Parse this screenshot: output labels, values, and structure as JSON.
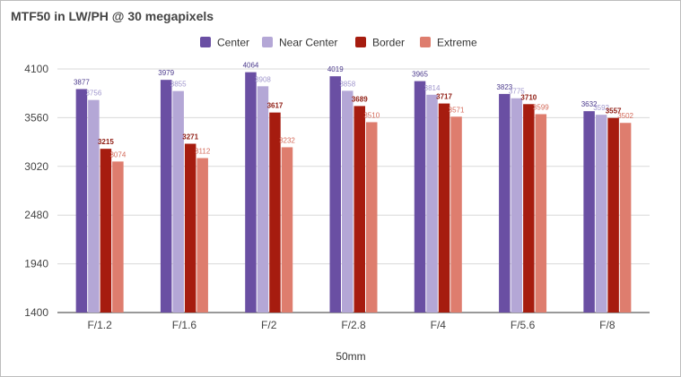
{
  "chart_data": {
    "type": "bar",
    "title": "MTF50 in LW/PH @ 30 megapixels",
    "xlabel": "50mm",
    "ylabel": "",
    "ylim": [
      1400,
      4100
    ],
    "yticks": [
      1400,
      1940,
      2480,
      3020,
      3560,
      4100
    ],
    "grid": true,
    "legend_position": "top",
    "categories": [
      "F/1.2",
      "F/1.6",
      "F/2",
      "F/2.8",
      "F/4",
      "F/5.6",
      "F/8"
    ],
    "series": [
      {
        "name": "Center",
        "color": "#6a4fa3",
        "label_color": "#4b3a8c",
        "bold": false,
        "values": [
          3877,
          3979,
          4064,
          4019,
          3965,
          3823,
          3632
        ]
      },
      {
        "name": "Near Center",
        "color": "#b4a7d6",
        "label_color": "#9f95cc",
        "bold": false,
        "values": [
          3756,
          3855,
          3908,
          3858,
          3814,
          3775,
          3592
        ]
      },
      {
        "name": "Border",
        "color": "#a61c0f",
        "label_color": "#8e1a10",
        "bold": true,
        "values": [
          3215,
          3271,
          3617,
          3689,
          3717,
          3710,
          3557
        ]
      },
      {
        "name": "Extreme",
        "color": "#de7d6e",
        "label_color": "#d46a5a",
        "bold": false,
        "values": [
          3074,
          3112,
          3232,
          3510,
          3571,
          3599,
          3502
        ]
      }
    ]
  }
}
